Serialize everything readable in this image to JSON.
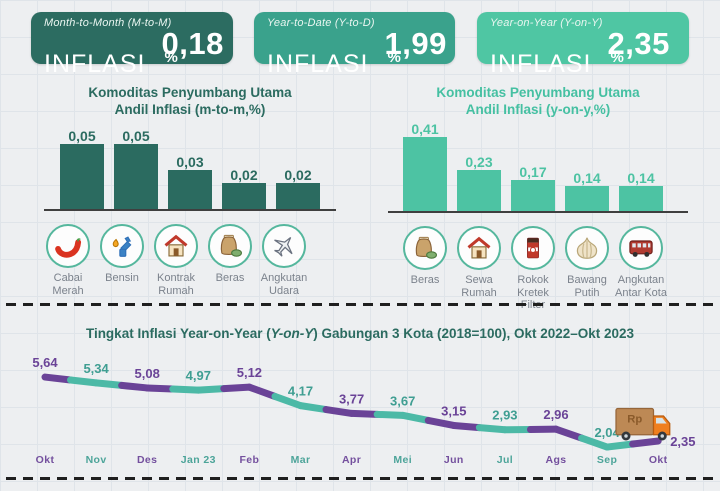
{
  "cards": [
    {
      "period": "Month-to-Month (M-to-M)",
      "label": "INFLASI",
      "value": "0,18",
      "unit": "%",
      "color": "#2c6c61"
    },
    {
      "period": "Year-to-Date (Y-to-D)",
      "label": "INFLASI",
      "value": "1,99",
      "unit": "%",
      "color": "#3aa28c"
    },
    {
      "period": "Year-on-Year (Y-on-Y)",
      "label": "INFLASI",
      "value": "2,35",
      "unit": "%",
      "color": "#4fc6a3"
    }
  ],
  "colors": {
    "dark_teal": "#2b6b60",
    "light_green": "#4dc3a3",
    "purple": "#6a4397",
    "teal_text": "#3f9e92",
    "teal_line": "#4cb9a6"
  },
  "chart_data": [
    {
      "type": "bar",
      "title": "Komoditas Penyumbang Utama",
      "subtitle": "Andil Inflasi (m-to-m,%)",
      "categories": [
        "Cabai Merah",
        "Bensin",
        "Kontrak Rumah",
        "Beras",
        "Angkutan Udara"
      ],
      "values": [
        0.05,
        0.05,
        0.03,
        0.02,
        0.02
      ],
      "value_labels": [
        "0,05",
        "0,05",
        "0,03",
        "0,02",
        "0,02"
      ],
      "icons": [
        "chili-icon",
        "fuel-pump-icon",
        "house-icon",
        "rice-sack-icon",
        "airplane-icon"
      ],
      "bar_color": "#2b6b60",
      "ylim": [
        0,
        0.06
      ]
    },
    {
      "type": "bar",
      "title": "Komoditas Penyumbang Utama",
      "subtitle": "Andil Inflasi (y-on-y,%)",
      "categories": [
        "Beras",
        "Sewa Rumah",
        "Rokok Kretek Filter",
        "Bawang Putih",
        "Angkutan Antar Kota"
      ],
      "values": [
        0.41,
        0.23,
        0.17,
        0.14,
        0.14
      ],
      "value_labels": [
        "0,41",
        "0,23",
        "0,17",
        "0,14",
        "0,14"
      ],
      "icons": [
        "rice-sack-icon",
        "house-icon",
        "cigarette-pack-icon",
        "garlic-icon",
        "bus-icon"
      ],
      "bar_color": "#4dc3a3",
      "ylim": [
        0,
        0.45
      ]
    },
    {
      "type": "line",
      "title": "Tingkat Inflasi Year-on-Year (Y-on-Y) Gabungan 3 Kota (2018=100), Okt 2022–Okt 2023",
      "title_prefix": "Tingkat Inflasi Year-on-Year (",
      "title_italic": "Y-on-Y",
      "title_suffix": ") Gabungan 3 Kota (2018=100), Okt 2022–Okt 2023",
      "x": [
        "Okt",
        "Nov",
        "Des",
        "Jan 23",
        "Feb",
        "Mar",
        "Apr",
        "Mei",
        "Jun",
        "Jul",
        "Ags",
        "Sep",
        "Okt"
      ],
      "values": [
        5.64,
        5.34,
        5.08,
        4.97,
        5.12,
        4.17,
        3.77,
        3.67,
        3.15,
        2.93,
        2.96,
        2.04,
        2.35
      ],
      "value_labels": [
        "5,64",
        "5,34",
        "5,08",
        "4,97",
        "5,12",
        "4,17",
        "3,77",
        "3,67",
        "3,15",
        "2,93",
        "2,96",
        "2,04",
        "2,35"
      ],
      "alternating_colors": {
        "purple": "#6a4397",
        "teal": "#4cb9a6",
        "teal_text": "#3f9e92"
      },
      "annotation": "Rp",
      "annotation_icon": "delivery-truck-icon",
      "ylim": [
        0,
        6
      ],
      "grid": true,
      "legend": false
    }
  ]
}
